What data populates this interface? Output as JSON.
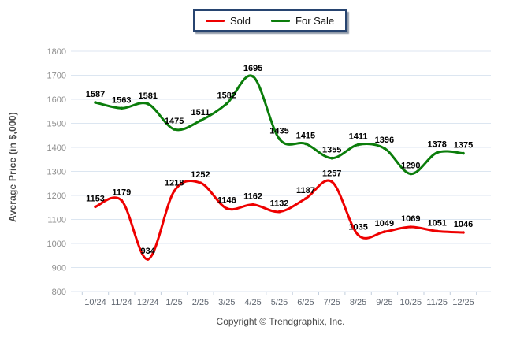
{
  "legend": {
    "items": [
      {
        "label": "Sold",
        "color": "#ee0000"
      },
      {
        "label": "For Sale",
        "color": "#0b7d0b"
      }
    ]
  },
  "y_axis_title": "Average Price (in $,000)",
  "copyright": "Copyright © Trendgraphix, Inc.",
  "colors": {
    "sold": "#ee0000",
    "for_sale": "#0b7d0b",
    "gridline": "#dce6f1",
    "tick_mark": "#c2cedd",
    "y_tick_label": "#8e8e8e",
    "x_tick_label": "#5f6670",
    "data_label": "#000000",
    "legend_border": "#274470"
  },
  "chart_data": {
    "type": "line",
    "title": "",
    "categories": [
      "10/24",
      "11/24",
      "12/24",
      "1/25",
      "2/25",
      "3/25",
      "4/25",
      "5/25",
      "6/25",
      "7/25",
      "8/25",
      "9/25",
      "10/25",
      "11/25",
      "12/25"
    ],
    "series": [
      {
        "name": "Sold",
        "color": "#ee0000",
        "values": [
          1153,
          1179,
          934,
          1218,
          1252,
          1146,
          1162,
          1132,
          1187,
          1257,
          1035,
          1049,
          1069,
          1051,
          1046
        ]
      },
      {
        "name": "For Sale",
        "color": "#0b7d0b",
        "values": [
          1587,
          1563,
          1581,
          1475,
          1511,
          1582,
          1695,
          1435,
          1415,
          1355,
          1411,
          1396,
          1290,
          1378,
          1375
        ]
      }
    ],
    "xlabel": "",
    "ylabel": "Average Price (in $,000)",
    "ylim": [
      800,
      1800
    ],
    "ytick_step": 100,
    "grid": "horizontal-only",
    "legend_position": "top-center",
    "smooth": true,
    "data_labels": true
  }
}
